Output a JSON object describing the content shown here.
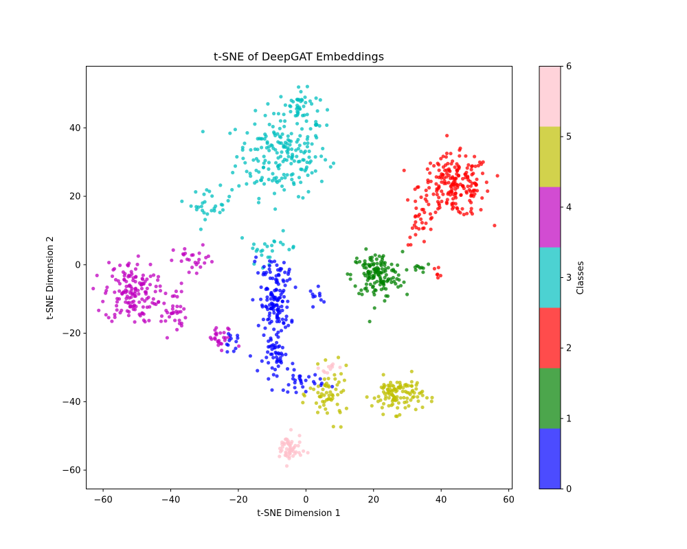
{
  "chart_data": {
    "type": "scatter",
    "title": "t-SNE of DeepGAT Embeddings",
    "xlabel": "t-SNE Dimension 1",
    "ylabel": "t-SNE Dimension 2",
    "xlim": [
      -65,
      61
    ],
    "ylim": [
      -65.5,
      58
    ],
    "xticks": [
      -60,
      -40,
      -20,
      0,
      20,
      40,
      60
    ],
    "yticks": [
      -60,
      -40,
      -20,
      0,
      20,
      40
    ],
    "grid": false,
    "colorbar": {
      "label": "Classes",
      "ticks": [
        0,
        1,
        2,
        3,
        4,
        5,
        6
      ],
      "classes": [
        {
          "class": 0,
          "color": "#0000ff"
        },
        {
          "class": 1,
          "color": "#008000"
        },
        {
          "class": 2,
          "color": "#ff0000"
        },
        {
          "class": 3,
          "color": "#00bfbf"
        },
        {
          "class": 4,
          "color": "#bf00bf"
        },
        {
          "class": 5,
          "color": "#bfbf00"
        },
        {
          "class": 6,
          "color": "#ffc0cb"
        }
      ]
    },
    "clusters": [
      {
        "class": 3,
        "center": [
          -7,
          32
        ],
        "spread": [
          9,
          8
        ],
        "count": 190
      },
      {
        "class": 3,
        "center": [
          -2,
          46
        ],
        "spread": [
          4,
          3.5
        ],
        "count": 45
      },
      {
        "class": 3,
        "center": [
          -28,
          18
        ],
        "spread": [
          4,
          3
        ],
        "count": 30
      },
      {
        "class": 3,
        "center": [
          -11,
          5
        ],
        "spread": [
          6,
          3
        ],
        "count": 25
      },
      {
        "class": 2,
        "center": [
          44,
          23
        ],
        "spread": [
          7,
          6
        ],
        "count": 200
      },
      {
        "class": 2,
        "center": [
          34,
          12
        ],
        "spread": [
          3,
          4
        ],
        "count": 25
      },
      {
        "class": 2,
        "center": [
          39,
          -2
        ],
        "spread": [
          1,
          1
        ],
        "count": 6
      },
      {
        "class": 1,
        "center": [
          21,
          -3
        ],
        "spread": [
          5,
          4.5
        ],
        "count": 140
      },
      {
        "class": 1,
        "center": [
          34,
          -1
        ],
        "spread": [
          2,
          2
        ],
        "count": 8
      },
      {
        "class": 4,
        "center": [
          -52,
          -8
        ],
        "spread": [
          5,
          6
        ],
        "count": 140
      },
      {
        "class": 4,
        "center": [
          -40,
          -13
        ],
        "spread": [
          3,
          5
        ],
        "count": 40
      },
      {
        "class": 4,
        "center": [
          -33,
          1
        ],
        "spread": [
          4,
          3
        ],
        "count": 25
      },
      {
        "class": 4,
        "center": [
          -25,
          -22
        ],
        "spread": [
          3,
          2.5
        ],
        "count": 25
      },
      {
        "class": 0,
        "center": [
          -9,
          -12
        ],
        "spread": [
          3,
          6
        ],
        "count": 110
      },
      {
        "class": 0,
        "center": [
          -10,
          -2
        ],
        "spread": [
          4,
          2.5
        ],
        "count": 30
      },
      {
        "class": 0,
        "center": [
          -8,
          -27
        ],
        "spread": [
          3,
          3
        ],
        "count": 40
      },
      {
        "class": 0,
        "center": [
          -2,
          -34
        ],
        "spread": [
          5,
          2
        ],
        "count": 30
      },
      {
        "class": 0,
        "center": [
          -22,
          -23
        ],
        "spread": [
          2,
          2
        ],
        "count": 12
      },
      {
        "class": 0,
        "center": [
          4,
          -9
        ],
        "spread": [
          2,
          1.5
        ],
        "count": 10
      },
      {
        "class": 5,
        "center": [
          27,
          -38
        ],
        "spread": [
          5,
          3.5
        ],
        "count": 110
      },
      {
        "class": 5,
        "center": [
          7,
          -38
        ],
        "spread": [
          4,
          5
        ],
        "count": 60
      },
      {
        "class": 6,
        "center": [
          -5,
          -54
        ],
        "spread": [
          2.5,
          3
        ],
        "count": 55
      },
      {
        "class": 6,
        "center": [
          7,
          -30
        ],
        "spread": [
          2,
          1.5
        ],
        "count": 10
      }
    ]
  }
}
